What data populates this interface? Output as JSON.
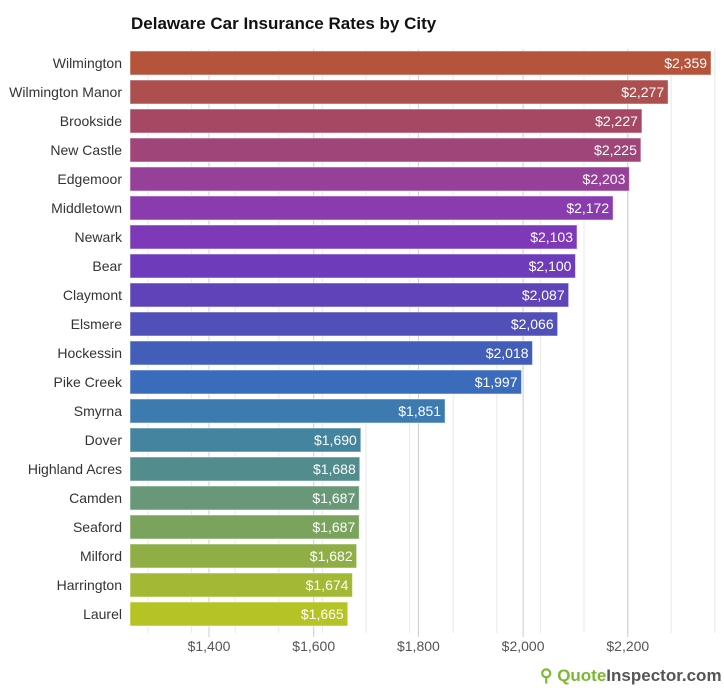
{
  "chart_data": {
    "type": "bar",
    "orientation": "horizontal",
    "title": "Delaware Car Insurance Rates by City",
    "categories": [
      "Wilmington",
      "Wilmington Manor",
      "Brookside",
      "New Castle",
      "Edgemoor",
      "Middletown",
      "Newark",
      "Bear",
      "Claymont",
      "Elsmere",
      "Hockessin",
      "Pike Creek",
      "Smyrna",
      "Dover",
      "Highland Acres",
      "Camden",
      "Seaford",
      "Milford",
      "Harrington",
      "Laurel"
    ],
    "values": [
      2359,
      2277,
      2227,
      2225,
      2203,
      2172,
      2103,
      2100,
      2087,
      2066,
      2018,
      1997,
      1851,
      1690,
      1688,
      1687,
      1687,
      1682,
      1674,
      1665
    ],
    "data_labels": [
      "$2,359",
      "$2,277",
      "$2,227",
      "$2,225",
      "$2,203",
      "$2,172",
      "$2,103",
      "$2,100",
      "$2,087",
      "$2,066",
      "$2,018",
      "$1,997",
      "$1,851",
      "$1,690",
      "$1,688",
      "$1,687",
      "$1,687",
      "$1,682",
      "$1,674",
      "$1,665"
    ],
    "colors": [
      "#b5533b",
      "#ad4f4f",
      "#a64763",
      "#a0457a",
      "#97409a",
      "#8a3cae",
      "#7d39b8",
      "#6e3cba",
      "#5e44b8",
      "#5050b8",
      "#425eb8",
      "#3a6cbb",
      "#3d7ab0",
      "#44849e",
      "#528c8c",
      "#689878",
      "#7aa35d",
      "#8fae45",
      "#a3b835",
      "#b5c424"
    ],
    "xticks": [
      1400,
      1600,
      1800,
      2000,
      2200
    ],
    "xtick_labels": [
      "$1,400",
      "$1,600",
      "$1,800",
      "$2,000",
      "$2,200"
    ],
    "xlim": [
      1250,
      2360
    ],
    "grid": true
  },
  "logo": {
    "part1": "Quote",
    "part2": "Inspector.com"
  }
}
